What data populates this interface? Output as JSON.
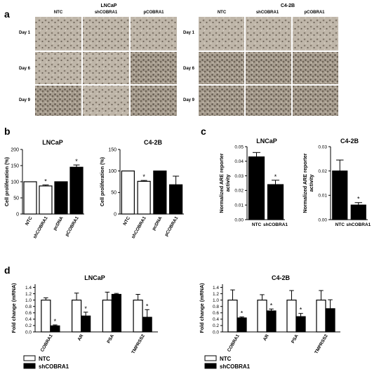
{
  "panel_labels": {
    "a": "a",
    "b": "b",
    "c": "c",
    "d": "d"
  },
  "panel_a": {
    "groups": [
      {
        "title": "LNCaP",
        "columns": [
          "NTC",
          "shCOBRA1",
          "pCOBRA1"
        ]
      },
      {
        "title": "C4-2B",
        "columns": [
          "NTC",
          "shCOBRA1",
          "pCOBRA1"
        ]
      }
    ],
    "rows": [
      "Day 1",
      "Day 6",
      "Day 9"
    ]
  },
  "colors": {
    "ntc": "#ffffff",
    "sh": "#000000",
    "micrograph_light": "#c9c0b4",
    "micrograph_dark": "#8f867a"
  },
  "chart_data": [
    {
      "id": "b-lncap",
      "type": "bar",
      "title": "LNCaP",
      "ylabel": "Cell proliferation (%)",
      "ylim": [
        0,
        200
      ],
      "yticks": [
        0,
        50,
        100,
        150,
        200
      ],
      "categories": [
        "NTC",
        "shCOBRA1",
        "pcDNA",
        "pCOBRA1"
      ],
      "values": [
        100,
        87,
        100,
        145
      ],
      "errors": [
        0,
        3,
        0,
        7
      ],
      "fills": [
        "white",
        "white",
        "black",
        "black"
      ],
      "sig": [
        "",
        "*",
        "",
        "*"
      ]
    },
    {
      "id": "b-c42b",
      "type": "bar",
      "title": "C4-2B",
      "ylabel": "Cell proliferation (%)",
      "ylim": [
        0,
        150
      ],
      "yticks": [
        0,
        50,
        100,
        150
      ],
      "categories": [
        "NTC",
        "shCOBRA1",
        "pcDNA",
        "pCOBRA1"
      ],
      "values": [
        100,
        76,
        100,
        68
      ],
      "errors": [
        0,
        2,
        0,
        20
      ],
      "fills": [
        "white",
        "white",
        "black",
        "black"
      ],
      "sig": [
        "",
        "*",
        "",
        ""
      ]
    },
    {
      "id": "c-lncap",
      "type": "bar",
      "title": "LNCaP",
      "ylabel": "Normalized ARE reporter activity",
      "ylim": [
        0,
        0.05
      ],
      "yticks": [
        0,
        0.01,
        0.02,
        0.03,
        0.04,
        0.05
      ],
      "ytick_labels": [
        "0.00",
        "0.01",
        "0.02",
        "0.03",
        "0.04",
        "0.05"
      ],
      "categories": [
        "NTC",
        "shCOBRA1"
      ],
      "values": [
        0.043,
        0.024
      ],
      "errors": [
        0.003,
        0.003
      ],
      "fills": [
        "black",
        "black"
      ],
      "sig": [
        "",
        "*"
      ]
    },
    {
      "id": "c-c42b",
      "type": "bar",
      "title": "C4-2B",
      "ylabel": "Normalized ARE reporter activity",
      "ylim": [
        0,
        0.03
      ],
      "yticks": [
        0,
        0.01,
        0.02,
        0.03
      ],
      "ytick_labels": [
        "0.00",
        "0.01",
        "0.02",
        "0.03"
      ],
      "categories": [
        "NTC",
        "shCOBRA1"
      ],
      "values": [
        0.02,
        0.006
      ],
      "errors": [
        0.0045,
        0.001
      ],
      "fills": [
        "black",
        "black"
      ],
      "sig": [
        "",
        "*"
      ]
    },
    {
      "id": "d-lncap",
      "type": "bar",
      "title": "LNCaP",
      "ylabel": "Fold change (mRNA)",
      "ylim": [
        0,
        1.5
      ],
      "yticks": [
        0,
        0.2,
        0.4,
        0.6,
        0.8,
        1.0,
        1.2,
        1.4
      ],
      "ytick_labels": [
        "0.0",
        "0.2",
        "0.4",
        "0.6",
        "0.8",
        "1.0",
        "1.2",
        "1.4"
      ],
      "categories": [
        "COBRA1",
        "AR",
        "PSA",
        "TMPRSS2"
      ],
      "series": [
        {
          "name": "NTC",
          "fill": "white",
          "values": [
            1.0,
            1.0,
            1.0,
            1.0
          ],
          "errors": [
            0.07,
            0.22,
            0.25,
            0.18
          ]
        },
        {
          "name": "shCOBRA1",
          "fill": "black",
          "values": [
            0.19,
            0.5,
            1.18,
            0.46
          ],
          "errors": [
            0.03,
            0.12,
            0.03,
            0.24
          ]
        }
      ],
      "sig": [
        [
          "",
          "*"
        ],
        [
          "",
          "*"
        ],
        [
          "",
          ""
        ],
        [
          "",
          "*"
        ]
      ]
    },
    {
      "id": "d-c42b",
      "type": "bar",
      "title": "C4-2B",
      "ylabel": "Fold change (mRNA)",
      "ylim": [
        0,
        1.5
      ],
      "yticks": [
        0,
        0.2,
        0.4,
        0.6,
        0.8,
        1.0,
        1.2,
        1.4
      ],
      "ytick_labels": [
        "0.0",
        "0.2",
        "0.4",
        "0.6",
        "0.8",
        "1.0",
        "1.2",
        "1.4"
      ],
      "categories": [
        "COBRA1",
        "AR",
        "PSA",
        "TMPRSS2"
      ],
      "series": [
        {
          "name": "NTC",
          "fill": "white",
          "values": [
            1.0,
            1.0,
            1.0,
            1.0
          ],
          "errors": [
            0.32,
            0.17,
            0.3,
            0.3
          ]
        },
        {
          "name": "shCOBRA1",
          "fill": "black",
          "values": [
            0.44,
            0.66,
            0.48,
            0.73
          ],
          "errors": [
            0.03,
            0.06,
            0.1,
            0.28
          ]
        }
      ],
      "sig": [
        [
          "",
          "*"
        ],
        [
          "",
          "*"
        ],
        [
          "",
          "*"
        ],
        [
          "",
          ""
        ]
      ]
    }
  ],
  "legend_d": [
    {
      "label": "NTC",
      "fill": "white"
    },
    {
      "label": "shCOBRA1",
      "fill": "black"
    }
  ]
}
